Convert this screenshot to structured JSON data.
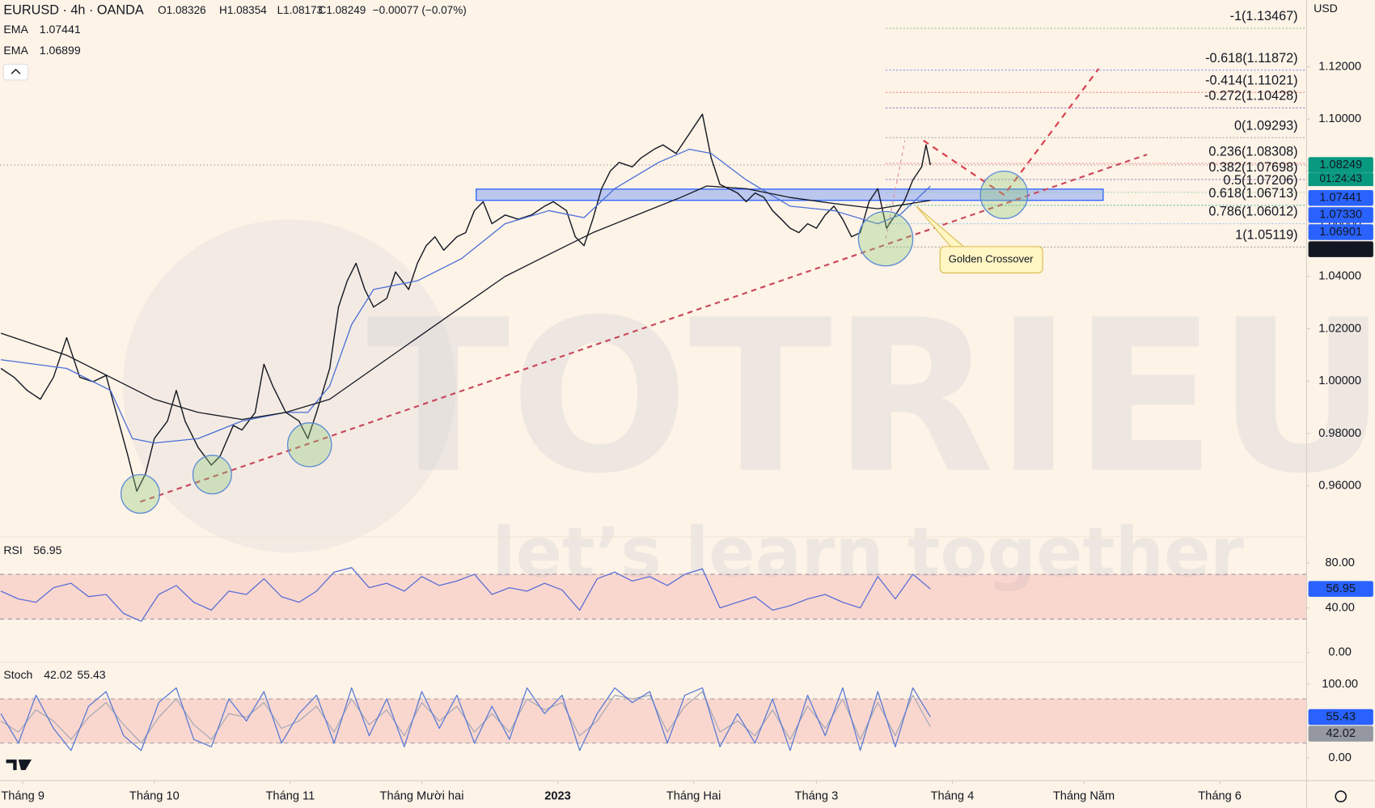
{
  "chart_data": [
    {
      "type": "line",
      "symbol": "EURUSD · 4h · OANDA",
      "ohlc": [
        "O1.08326",
        "H1.08354",
        "L1.08173",
        "C1.08249",
        "−0.00077 (−0.07%)"
      ],
      "currency": "USD",
      "countdown": "01:24:43",
      "callout": "Golden Crossover",
      "watermark": [
        "TOTRIEU",
        "let’s learn together"
      ],
      "x": [
        -5,
        -2,
        1,
        4,
        7,
        10,
        13,
        16,
        19,
        21,
        24,
        26,
        28,
        30,
        33,
        35,
        37,
        40,
        43,
        45,
        48,
        50,
        53,
        55,
        57,
        60,
        63,
        65,
        67,
        70,
        72,
        74,
        76,
        78,
        80,
        83,
        85,
        88,
        90,
        92,
        94,
        96,
        99,
        101,
        103,
        105,
        107,
        110,
        113,
        116,
        119,
        121,
        124,
        126,
        128,
        130,
        132,
        134,
        136,
        139,
        141,
        144,
        146,
        149,
        151,
        155,
        157,
        159,
        161,
        163,
        165,
        167,
        169,
        171,
        173,
        175,
        177,
        179,
        181,
        183,
        185,
        187,
        189,
        191,
        193,
        195,
        197,
        199,
        201,
        203,
        205,
        206,
        207
      ],
      "xlim": [
        -5.2,
        292.8
      ],
      "xticks": [
        {
          "value": 0,
          "label": "Tháng 9"
        },
        {
          "value": 30,
          "label": "Tháng 10"
        },
        {
          "value": 61,
          "label": "Tháng 11"
        },
        {
          "value": 91,
          "label": "Tháng Mười hai"
        },
        {
          "value": 122,
          "label": "2023"
        },
        {
          "value": 153,
          "label": "Tháng Hai"
        },
        {
          "value": 181,
          "label": "Tháng 3"
        },
        {
          "value": 212,
          "label": "Tháng 4"
        },
        {
          "value": 242,
          "label": "Tháng Năm"
        },
        {
          "value": 273,
          "label": "Tháng 6"
        }
      ],
      "ylim": [
        0.9406,
        1.1454
      ],
      "yticks": [
        {
          "value": 1.12,
          "label": "1.12000"
        },
        {
          "value": 1.1,
          "label": "1.10000"
        },
        {
          "value": 1.08,
          "label": "1.08000"
        },
        {
          "value": 1.06,
          "label": "1.06000"
        },
        {
          "value": 1.04,
          "label": "1.04000"
        },
        {
          "value": 1.02,
          "label": "1.02000"
        },
        {
          "value": 1.0,
          "label": "1.00000"
        },
        {
          "value": 0.98,
          "label": "0.98000"
        },
        {
          "value": 0.96,
          "label": "0.96000"
        }
      ],
      "grid": false,
      "series": [
        {
          "color": "#131722",
          "values": [
            1.0049,
            1.0015,
            0.9965,
            0.9931,
            1.0015,
            1.0166,
            1.0015,
            0.9998,
            1.0022,
            0.9898,
            0.9714,
            0.958,
            0.9647,
            0.9781,
            0.9848,
            0.9965,
            0.9848,
            0.9747,
            0.968,
            0.9714,
            0.9831,
            0.9814,
            0.9881,
            1.0065,
            0.9982,
            0.9881,
            0.9848,
            0.9781,
            0.9881,
            1.0049,
            1.0283,
            1.0383,
            1.045,
            1.035,
            1.0283,
            1.0316,
            1.0417,
            1.035,
            1.045,
            1.0517,
            1.0551,
            1.05,
            1.0551,
            1.0567,
            1.0651,
            1.0685,
            1.0601,
            1.0634,
            1.0618,
            1.0634,
            1.0668,
            1.0685,
            1.0651,
            1.0551,
            1.0517,
            1.0618,
            1.0735,
            1.0802,
            1.0835,
            1.0818,
            1.0852,
            1.0885,
            1.0902,
            1.0869,
            1.0919,
            1.1019,
            1.0852,
            1.0751,
            1.0735,
            1.0718,
            1.0685,
            1.0718,
            1.0702,
            1.0651,
            1.0618,
            1.0584,
            1.0567,
            1.0601,
            1.0584,
            1.0634,
            1.0668,
            1.0618,
            1.0551,
            1.0567,
            1.0685,
            1.0735,
            1.0584,
            1.0634,
            1.0685,
            1.0768,
            1.0818,
            1.0902,
            1.08249
          ]
        },
        {
          "name": "EMA",
          "color": "#4a6fd6",
          "x": [
            -5,
            10,
            20,
            25,
            30,
            40,
            50,
            60,
            65,
            70,
            75,
            80,
            90,
            100,
            110,
            120,
            128,
            135,
            145,
            152,
            157,
            165,
            175,
            185,
            195,
            200,
            207
          ],
          "values": [
            1.0082,
            1.0049,
            0.9965,
            0.9781,
            0.9764,
            0.9781,
            0.9848,
            0.9881,
            0.9881,
            0.9982,
            1.0216,
            1.035,
            1.0383,
            1.0467,
            1.0601,
            1.0651,
            1.0624,
            1.0735,
            1.0835,
            1.0885,
            1.0869,
            1.0768,
            1.0668,
            1.0651,
            1.0601,
            1.0634,
            1.07441
          ]
        },
        {
          "name": "EMA",
          "color": "#131722",
          "x": [
            -5,
            10,
            20,
            30,
            40,
            50,
            60,
            70,
            80,
            90,
            100,
            110,
            120,
            130,
            140,
            150,
            156,
            165,
            175,
            185,
            195,
            207
          ],
          "values": [
            1.0183,
            1.0099,
            1.0015,
            0.9931,
            0.9881,
            0.9854,
            0.9881,
            0.9931,
            1.0049,
            1.0166,
            1.0283,
            1.04,
            1.0484,
            1.0567,
            1.0634,
            1.0701,
            1.0745,
            1.0735,
            1.0701,
            1.0678,
            1.0658,
            1.06899
          ]
        }
      ],
      "zone": {
        "values": [
          1.0733,
          1.06901
        ],
        "value_labels": [
          "1.07330",
          "1.06901"
        ],
        "color": "#2962ff"
      },
      "fib_levels": [
        {
          "label": "-1(1.13467)",
          "value": 1.13467,
          "color": "#43a047"
        },
        {
          "label": "-0.618(1.11872)",
          "value": 1.11872,
          "color": "#3d5afe"
        },
        {
          "label": "-0.414(1.11021)",
          "value": 1.11021,
          "color": "#e53935"
        },
        {
          "label": "-0.272(1.10428)",
          "value": 1.10428,
          "color": "#5e35b1"
        },
        {
          "label": "0(1.09293)",
          "value": 1.09293,
          "color": "#787b86"
        },
        {
          "label": "0.236(1.08308)",
          "value": 1.08308,
          "color": "#f23645"
        },
        {
          "label": "0.382(1.07698)",
          "value": 1.07698,
          "color": "#673ab7"
        },
        {
          "label": "0.5(1.07206)",
          "value": 1.07206,
          "color": "#81c784"
        },
        {
          "label": "0.618(1.06713)",
          "value": 1.06713,
          "color": "#089981"
        },
        {
          "label": "0.786(1.06012)",
          "value": 1.06012,
          "color": "#64b5f6"
        },
        {
          "label": "1(1.05119)",
          "value": 1.05119,
          "color": "#787b86"
        }
      ]
    },
    {
      "type": "line",
      "title": "RSI",
      "x": [
        -5,
        -1,
        3,
        7,
        11,
        15,
        19,
        23,
        27,
        31,
        35,
        39,
        43,
        47,
        51,
        55,
        59,
        63,
        67,
        71,
        75,
        79,
        83,
        87,
        91,
        95,
        99,
        103,
        107,
        111,
        115,
        119,
        123,
        127,
        131,
        135,
        139,
        143,
        147,
        151,
        155,
        159,
        163,
        167,
        171,
        175,
        179,
        183,
        187,
        191,
        195,
        199,
        203,
        207
      ],
      "ylim": [
        -8.6,
        103.5
      ],
      "yticks": [
        {
          "value": 80,
          "label": "80.00"
        },
        {
          "value": 40,
          "label": "40.00"
        },
        {
          "value": 0,
          "label": "0.00"
        }
      ],
      "band": [
        30,
        70
      ],
      "series": [
        {
          "color": "#5b6fd6",
          "values": [
            55,
            48,
            45,
            58,
            62,
            50,
            52,
            35,
            28,
            52,
            60,
            45,
            38,
            55,
            52,
            66,
            50,
            45,
            55,
            72,
            76,
            58,
            62,
            55,
            68,
            60,
            64,
            70,
            52,
            58,
            55,
            62,
            56,
            38,
            66,
            72,
            64,
            68,
            60,
            70,
            75,
            40,
            45,
            50,
            38,
            42,
            48,
            52,
            45,
            40,
            68,
            48,
            70,
            56.95
          ]
        }
      ]
    },
    {
      "type": "line",
      "title": "Stoch",
      "x": [
        -5,
        -1,
        3,
        7,
        11,
        15,
        19,
        23,
        27,
        31,
        35,
        39,
        43,
        47,
        51,
        55,
        59,
        63,
        67,
        71,
        75,
        79,
        83,
        87,
        91,
        95,
        99,
        103,
        107,
        111,
        115,
        119,
        123,
        127,
        131,
        135,
        139,
        143,
        147,
        151,
        155,
        159,
        163,
        167,
        171,
        175,
        179,
        183,
        187,
        191,
        195,
        199,
        203,
        207
      ],
      "ylim": [
        -31,
        129.8
      ],
      "yticks": [
        {
          "value": 100,
          "label": "100.00"
        },
        {
          "value": 0,
          "label": "0.00"
        }
      ],
      "band": [
        20,
        80
      ],
      "series": [
        {
          "color": "#a9abb8",
          "values": [
            50,
            35,
            65,
            50,
            25,
            55,
            75,
            45,
            20,
            55,
            80,
            45,
            25,
            60,
            55,
            75,
            40,
            50,
            70,
            35,
            80,
            45,
            65,
            30,
            75,
            50,
            70,
            35,
            60,
            35,
            80,
            65,
            75,
            30,
            50,
            85,
            80,
            85,
            35,
            70,
            90,
            35,
            50,
            30,
            65,
            25,
            70,
            40,
            80,
            25,
            75,
            30,
            85,
            42.02
          ]
        },
        {
          "color": "#5b7bd5",
          "values": [
            60,
            20,
            85,
            40,
            10,
            70,
            90,
            30,
            10,
            75,
            95,
            25,
            15,
            80,
            50,
            90,
            20,
            60,
            85,
            20,
            95,
            30,
            80,
            15,
            90,
            40,
            85,
            20,
            70,
            25,
            95,
            60,
            85,
            10,
            60,
            95,
            75,
            90,
            20,
            85,
            95,
            15,
            60,
            20,
            80,
            10,
            85,
            30,
            95,
            10,
            90,
            15,
            95,
            55.43
          ]
        }
      ]
    }
  ]
}
